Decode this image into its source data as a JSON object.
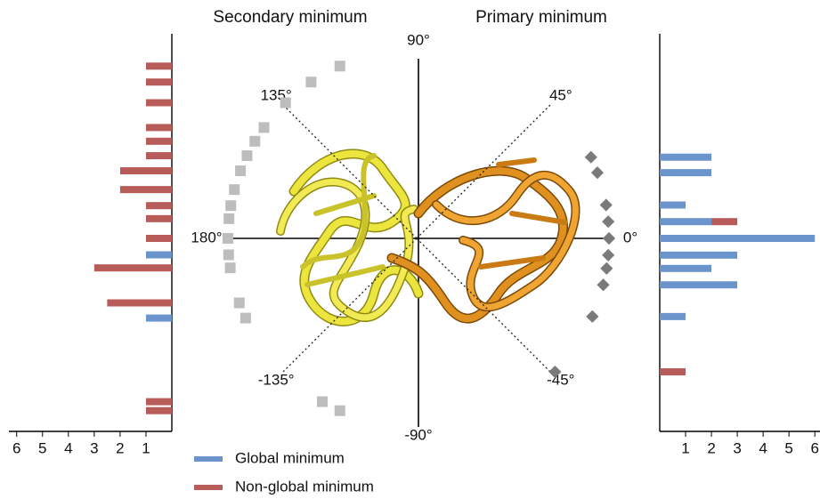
{
  "chart_data": [
    {
      "type": "bar",
      "title": "Secondary minimum",
      "side": "left",
      "marker": "square",
      "marker_color": "#bdbdbd",
      "angles": [
        114,
        124,
        134,
        144,
        149,
        154,
        159,
        165,
        170,
        174,
        180,
        185,
        189,
        200,
        205,
        240,
        246
      ],
      "series": [
        {
          "name": "Global minimum",
          "color": "#6b93cc",
          "values": [
            0,
            0,
            0,
            0,
            0,
            0,
            0,
            0,
            0,
            0,
            0,
            1,
            0,
            0,
            1,
            0,
            0
          ]
        },
        {
          "name": "Non-global minimum",
          "color": "#b85c5a",
          "values": [
            1,
            1,
            1,
            1,
            1,
            1,
            2,
            2,
            1,
            1,
            1,
            0,
            3,
            2.5,
            0,
            1,
            1
          ]
        }
      ],
      "xlim": [
        0,
        6.3
      ],
      "xticks": [
        1,
        2,
        3,
        4,
        5,
        6
      ]
    },
    {
      "type": "bar",
      "title": "Primary minimum",
      "side": "right",
      "marker": "diamond",
      "marker_color": "#7a7a7a",
      "angles": [
        25,
        20,
        10,
        5,
        0,
        -5,
        -9,
        -14,
        -24,
        -44
      ],
      "series": [
        {
          "color": "#6b93cc",
          "values": [
            2,
            2,
            1,
            2,
            6,
            3,
            2,
            3,
            1,
            0
          ]
        },
        {
          "color": "#b85c5a",
          "values": [
            0,
            0,
            0,
            1,
            0,
            0,
            0,
            0,
            0,
            1
          ]
        }
      ],
      "xlim": [
        0,
        6.2
      ],
      "xticks": [
        1,
        2,
        3,
        4,
        5,
        6
      ]
    }
  ],
  "angle_axis": {
    "ticks": [
      {
        "value": 90,
        "label": "90°"
      },
      {
        "value": 45,
        "label": "45°"
      },
      {
        "value": 0,
        "label": "0°"
      },
      {
        "value": -45,
        "label": "-45°"
      },
      {
        "value": -90,
        "label": "-90°"
      },
      {
        "value": -135,
        "label": "-135°"
      },
      {
        "value": 180,
        "label": "180°"
      },
      {
        "value": 135,
        "label": "135°"
      }
    ]
  }
}
